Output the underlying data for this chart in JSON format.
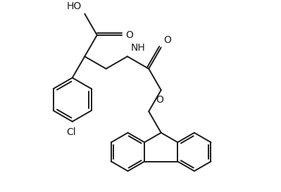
{
  "background_color": "#ffffff",
  "line_color": "#1a1a1a",
  "line_width": 1.4,
  "font_size": 10,
  "figsize": [
    3.99,
    2.73
  ],
  "dpi": 100,
  "xlim": [
    0,
    399
  ],
  "ylim": [
    0,
    273
  ]
}
